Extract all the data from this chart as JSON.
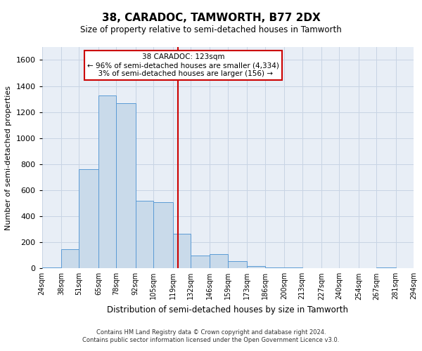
{
  "title": "38, CARADOC, TAMWORTH, B77 2DX",
  "subtitle": "Size of property relative to semi-detached houses in Tamworth",
  "xlabel": "Distribution of semi-detached houses by size in Tamworth",
  "ylabel": "Number of semi-detached properties",
  "property_size": 123,
  "property_label": "38 CARADOC: 123sqm",
  "pct_smaller": 96,
  "count_smaller": 4334,
  "pct_larger": 3,
  "count_larger": 156,
  "bar_color": "#c9daea",
  "bar_edge_color": "#5b9bd5",
  "vline_color": "#cc0000",
  "annotation_box_color": "#cc0000",
  "grid_color": "#c8d4e4",
  "background_color": "#e8eef6",
  "bin_edges": [
    24,
    38,
    51,
    65,
    78,
    92,
    105,
    119,
    132,
    146,
    159,
    173,
    186,
    200,
    213,
    227,
    240,
    254,
    267,
    281,
    294
  ],
  "bin_labels": [
    "24sqm",
    "38sqm",
    "51sqm",
    "65sqm",
    "78sqm",
    "92sqm",
    "105sqm",
    "119sqm",
    "132sqm",
    "146sqm",
    "159sqm",
    "173sqm",
    "186sqm",
    "200sqm",
    "213sqm",
    "227sqm",
    "240sqm",
    "254sqm",
    "267sqm",
    "281sqm",
    "294sqm"
  ],
  "bar_heights": [
    5,
    150,
    760,
    1330,
    1270,
    520,
    510,
    265,
    100,
    110,
    55,
    20,
    10,
    5,
    0,
    3,
    0,
    0,
    10,
    0
  ],
  "ylim": [
    0,
    1700
  ],
  "yticks": [
    0,
    200,
    400,
    600,
    800,
    1000,
    1200,
    1400,
    1600
  ],
  "footnote1": "Contains HM Land Registry data © Crown copyright and database right 2024.",
  "footnote2": "Contains public sector information licensed under the Open Government Licence v3.0."
}
